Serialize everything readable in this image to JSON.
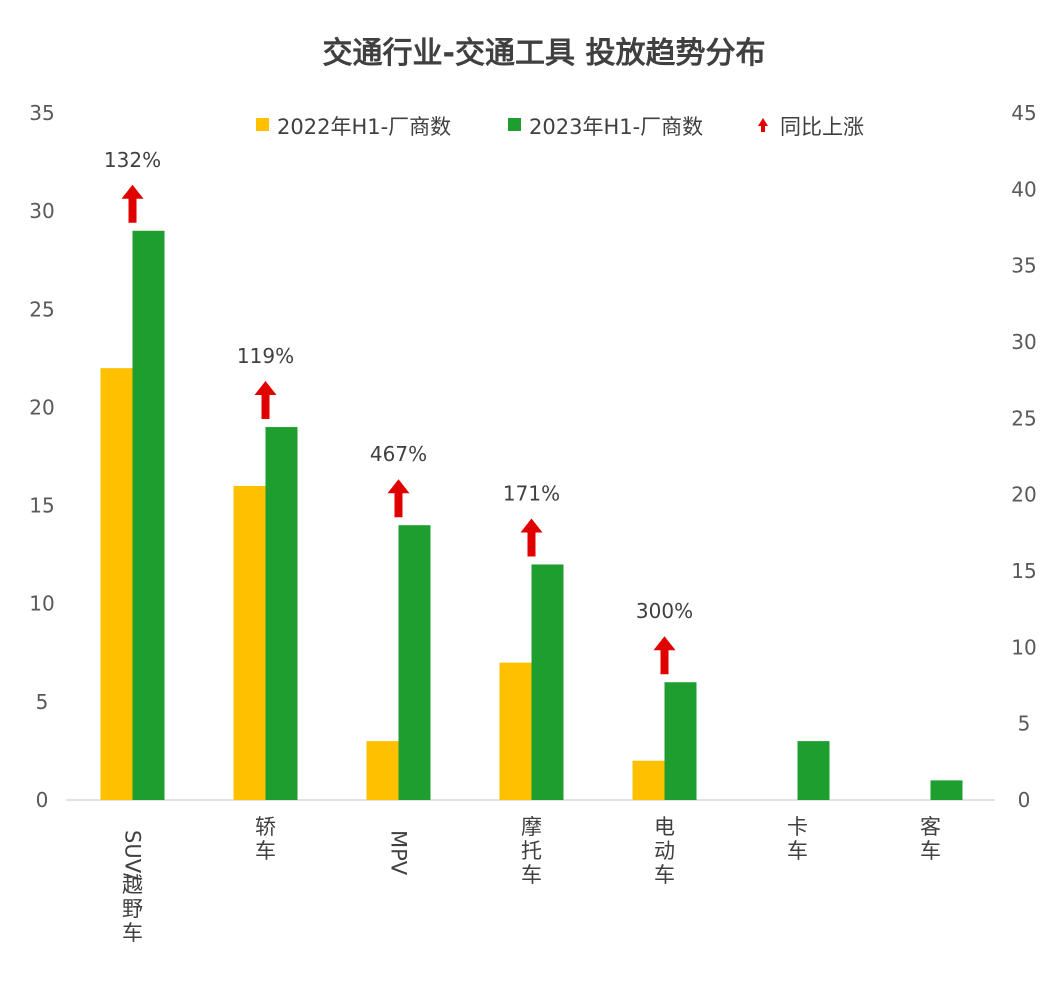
{
  "chart_data": {
    "type": "bar",
    "title": "交通行业-交通工具 投放趋势分布",
    "categories": [
      "SUV/越野车",
      "轿车",
      "MPV",
      "摩托车",
      "电动车",
      "卡车",
      "客车"
    ],
    "series": [
      {
        "name": "2022年H1-厂商数",
        "color": "#FFC000",
        "values": [
          22,
          16,
          3,
          7,
          2,
          0,
          0
        ]
      },
      {
        "name": "2023年H1-厂商数",
        "color": "#1E9E2E",
        "values": [
          29,
          19,
          14,
          12,
          6,
          3,
          1
        ]
      }
    ],
    "growth_marker": {
      "name": "同比上涨",
      "color": "#E00000"
    },
    "growth_labels": [
      "132%",
      "119%",
      "467%",
      "171%",
      "300%",
      "",
      ""
    ],
    "ylim": [
      0,
      35
    ],
    "y_ticks": [
      "0",
      "5",
      "10",
      "15",
      "20",
      "25",
      "30",
      "35"
    ],
    "y2lim": [
      0,
      45
    ],
    "y2_ticks": [
      "0",
      "5",
      "10",
      "15",
      "20",
      "25",
      "30",
      "35",
      "40",
      "45"
    ],
    "grid": false,
    "legend_position": "top"
  }
}
